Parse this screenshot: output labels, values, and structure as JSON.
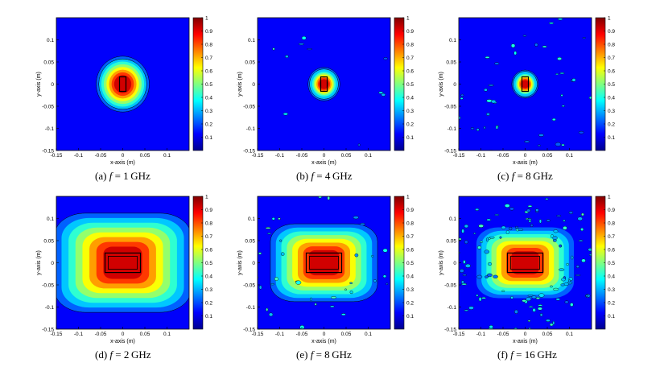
{
  "figure": {
    "panels": [
      {
        "id": "a",
        "caption_label": "(a)",
        "f_symbol": "f",
        "equals": "=",
        "freq_value": "1",
        "freq_unit": "GHz",
        "mode": "blob",
        "spot_scale": 1.0,
        "spread": 0.0,
        "rings": true,
        "scatter": 0,
        "box": "small"
      },
      {
        "id": "b",
        "caption_label": "(b)",
        "f_symbol": "f",
        "equals": "=",
        "freq_value": "4",
        "freq_unit": "GHz",
        "mode": "blob",
        "spot_scale": 0.55,
        "spread": 0.15,
        "rings": true,
        "scatter": 10,
        "box": "small"
      },
      {
        "id": "c",
        "caption_label": "(c)",
        "f_symbol": "f",
        "equals": "=",
        "freq_value": "8",
        "freq_unit": "GHz",
        "mode": "blob",
        "spot_scale": 0.45,
        "spread": 0.2,
        "rings": true,
        "scatter": 45,
        "box": "small"
      },
      {
        "id": "d",
        "caption_label": "(d)",
        "f_symbol": "f",
        "equals": "=",
        "freq_value": "2",
        "freq_unit": "GHz",
        "mode": "box",
        "spot_scale": 1.4,
        "spread": 0.0,
        "rings": true,
        "scatter": 0,
        "box": "large"
      },
      {
        "id": "e",
        "caption_label": "(e)",
        "f_symbol": "f",
        "equals": "=",
        "freq_value": "8",
        "freq_unit": "GHz",
        "mode": "box",
        "spot_scale": 1.1,
        "spread": 0.6,
        "rings": true,
        "scatter": 40,
        "box": "large"
      },
      {
        "id": "f",
        "caption_label": "(f)",
        "f_symbol": "f",
        "equals": "=",
        "freq_value": "16",
        "freq_unit": "GHz",
        "mode": "box",
        "spot_scale": 1.0,
        "spread": 1.0,
        "rings": false,
        "scatter": 120,
        "box": "large"
      }
    ],
    "axes": {
      "xlabel": "x-axis (m)",
      "ylabel": "y-axis (m)",
      "xticks": [
        "-0.15",
        "-0.1",
        "-0.05",
        "0",
        "0.05",
        "0.1"
      ],
      "yticks": [
        "0.1",
        "0.05",
        "0",
        "-0.05",
        "-0.1",
        "-0.15"
      ],
      "xtick_values": [
        -0.15,
        -0.1,
        -0.05,
        0,
        0.05,
        0.1
      ],
      "ytick_values": [
        0.1,
        0.05,
        0,
        -0.05,
        -0.1,
        -0.15
      ],
      "xlim": [
        -0.15,
        0.15
      ],
      "ylim": [
        -0.15,
        0.15
      ]
    },
    "colorbar": {
      "ticks": [
        "1",
        "0.9",
        "0.8",
        "0.7",
        "0.6",
        "0.5",
        "0.4",
        "0.3",
        "0.2",
        "0.1"
      ],
      "tick_values": [
        1,
        0.9,
        0.8,
        0.7,
        0.6,
        0.5,
        0.4,
        0.3,
        0.2,
        0.1
      ],
      "range": [
        0,
        1
      ],
      "colormap": [
        "#00008f",
        "#0000ff",
        "#0080ff",
        "#00ffff",
        "#80ff80",
        "#ffff00",
        "#ff8000",
        "#ff0000",
        "#800000"
      ]
    }
  }
}
